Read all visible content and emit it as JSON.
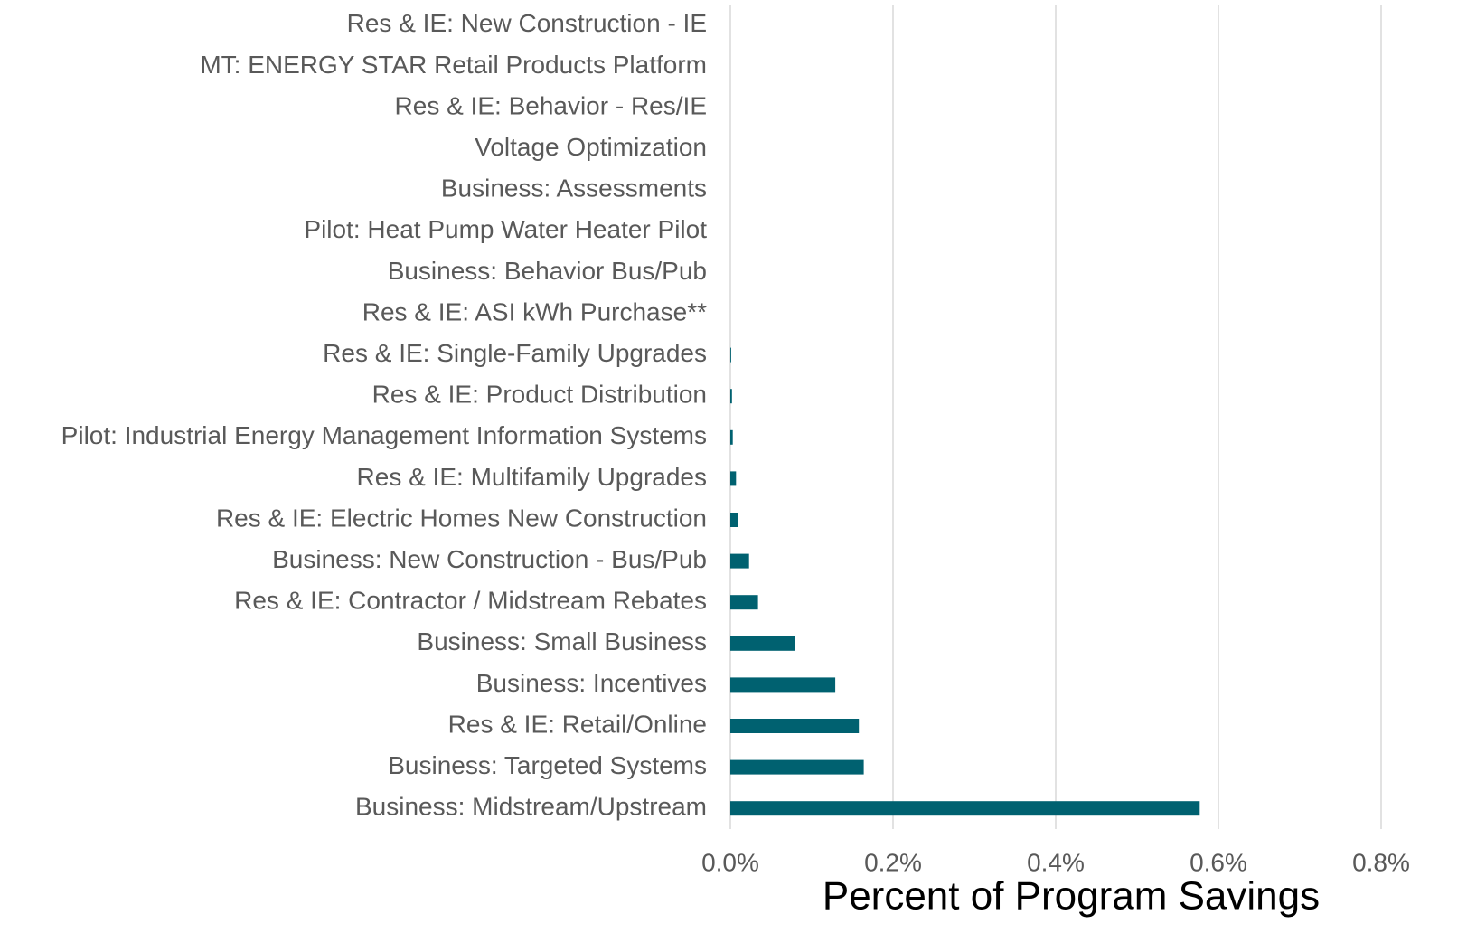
{
  "chart_data": {
    "type": "barh",
    "x_label": "Percent of Program Savings",
    "categories": [
      "Res & IE: New Construction - IE",
      "MT: ENERGY STAR Retail Products Platform",
      "Res & IE: Behavior - Res/IE",
      "Voltage Optimization",
      "Business: Assessments",
      "Pilot: Heat Pump Water Heater Pilot",
      "Business: Behavior Bus/Pub",
      "Res & IE: ASI kWh Purchase**",
      "Res & IE: Single-Family Upgrades",
      "Res & IE: Product Distribution",
      "Pilot: Industrial Energy Management Information Systems",
      "Res & IE: Multifamily Upgrades",
      "Res & IE: Electric Homes New Construction",
      "Business: New Construction - Bus/Pub",
      "Res & IE: Contractor / Midstream Rebates",
      "Business: Small Business",
      "Business: Incentives",
      "Res & IE: Retail/Online",
      "Business: Targeted Systems",
      "Business: Midstream/Upstream"
    ],
    "values": [
      0,
      0,
      0,
      0,
      0,
      0,
      0,
      0,
      0.001,
      0.002,
      0.003,
      0.007,
      0.01,
      0.023,
      0.034,
      0.079,
      0.129,
      0.158,
      0.164,
      0.577
    ],
    "color": "#006170",
    "xlim": [
      0,
      0.8
    ],
    "xticks": [
      {
        "value": 0,
        "label": "0.0%"
      },
      {
        "value": 0.2,
        "label": "0.2%"
      },
      {
        "value": 0.4,
        "label": "0.4%"
      },
      {
        "value": 0.6,
        "label": "0.6%"
      },
      {
        "value": 0.8,
        "label": "0.8%"
      }
    ],
    "grid": true
  }
}
